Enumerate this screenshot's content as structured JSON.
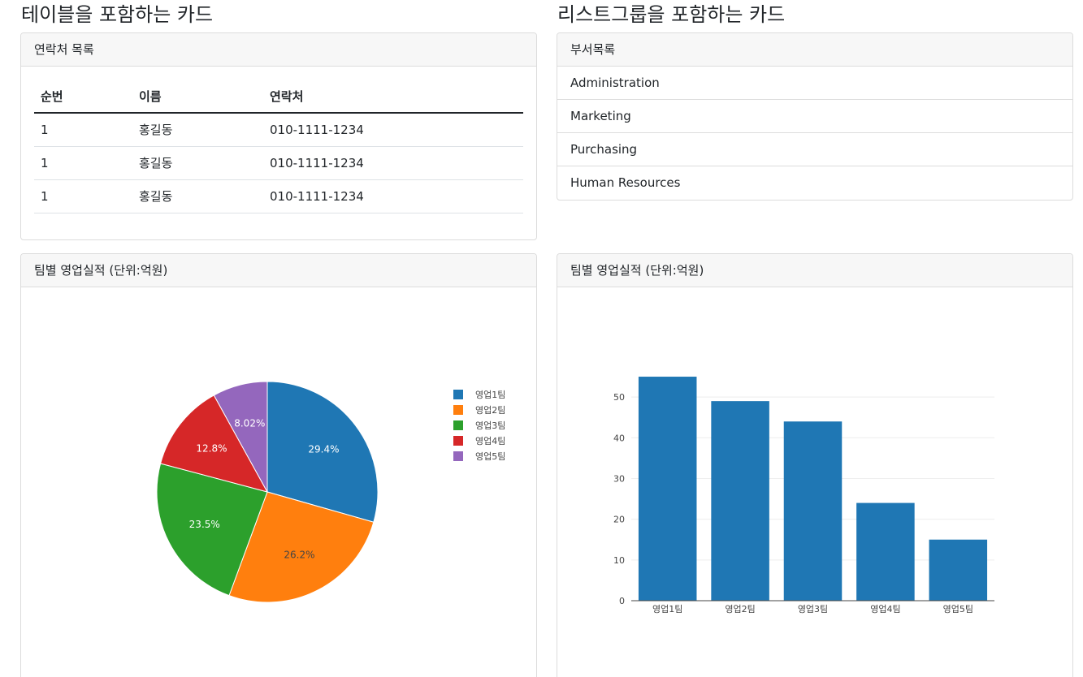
{
  "sections": {
    "left_title": "테이블을 포함하는 카드",
    "right_title": "리스트그룹을 포함하는 카드"
  },
  "contacts_card": {
    "header": "연락처 목록",
    "columns": [
      "순번",
      "이름",
      "연락처"
    ],
    "rows": [
      [
        "1",
        "홍길동",
        "010-1111-1234"
      ],
      [
        "1",
        "홍길동",
        "010-1111-1234"
      ],
      [
        "1",
        "홍길동",
        "010-1111-1234"
      ]
    ]
  },
  "dept_card": {
    "header": "부서목록",
    "items": [
      "Administration",
      "Marketing",
      "Purchasing",
      "Human Resources"
    ]
  },
  "pie_card": {
    "header": "팀별 영업실적 (단위:억원)"
  },
  "bar_card": {
    "header": "팀별 영업실적 (단위:억원)"
  },
  "chart_data": [
    {
      "type": "pie",
      "categories": [
        "영업1팀",
        "영업2팀",
        "영업3팀",
        "영업4팀",
        "영업5팀"
      ],
      "values": [
        55,
        49,
        44,
        24,
        15
      ],
      "labels": [
        "29.4%",
        "26.2%",
        "23.5%",
        "12.8%",
        "8.02%"
      ],
      "colors": [
        "#1f77b4",
        "#ff7f0e",
        "#2ca02c",
        "#d62728",
        "#9467bd"
      ],
      "legend": "right"
    },
    {
      "type": "bar",
      "categories": [
        "영업1팀",
        "영업2팀",
        "영업3팀",
        "영업4팀",
        "영업5팀"
      ],
      "values": [
        55,
        49,
        44,
        24,
        15
      ],
      "yticks": [
        "0",
        "10",
        "20",
        "30",
        "40",
        "50"
      ],
      "ylim": [
        0,
        57
      ],
      "color": "#1f77b4",
      "grid": true
    }
  ]
}
